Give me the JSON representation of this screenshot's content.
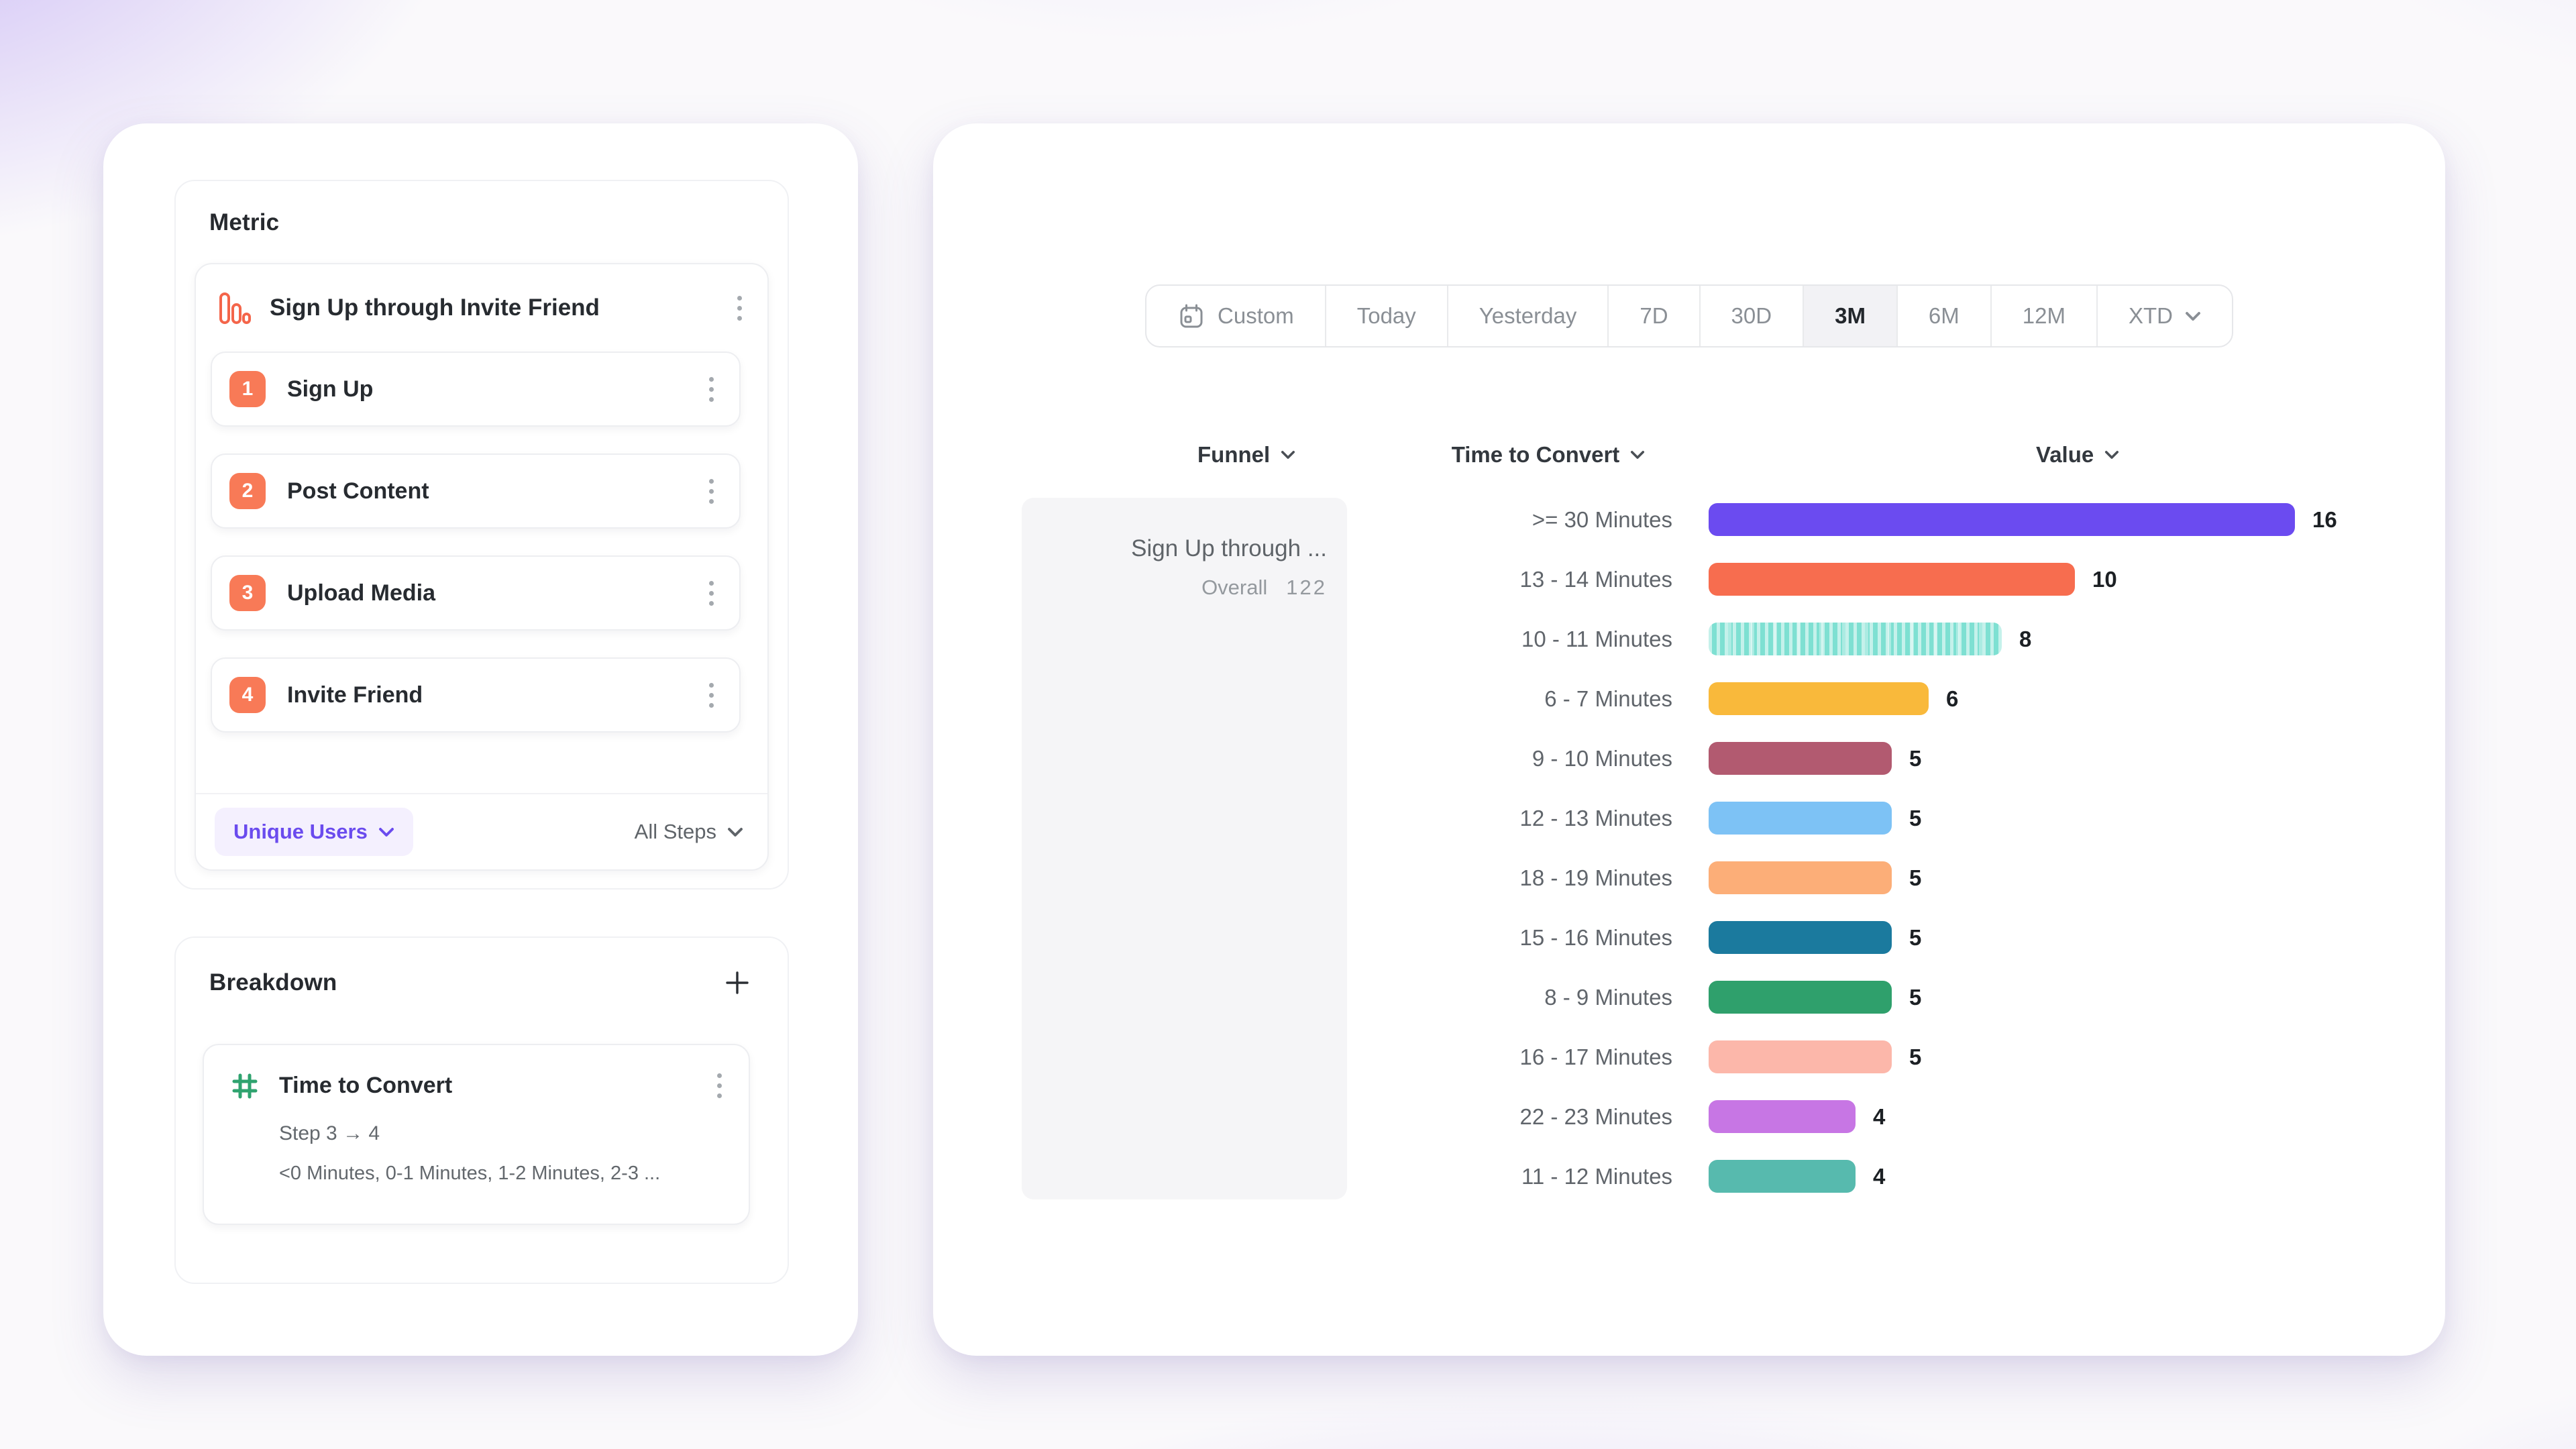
{
  "colors": {
    "accent_purple": "#6A4BEE",
    "step_badge_coral": "#F87A57",
    "funnel_icon_orange": "#F4654A",
    "hash_icon_green": "#2FA36F",
    "funnel_cell_bg": "#F5F5F7"
  },
  "left_panel": {
    "metric_section": {
      "heading": "Metric",
      "funnel": {
        "title": "Sign Up through Invite Friend",
        "steps": [
          {
            "number": "1",
            "label": "Sign Up"
          },
          {
            "number": "2",
            "label": "Post Content"
          },
          {
            "number": "3",
            "label": "Upload Media"
          },
          {
            "number": "4",
            "label": "Invite Friend"
          }
        ],
        "counting": "Unique Users",
        "step_filter": "All Steps"
      }
    },
    "breakdown_section": {
      "heading": "Breakdown",
      "property": {
        "name": "Time to Convert",
        "step_range": "Step 3 → 4",
        "buckets_preview": "<0 Minutes, 0-1 Minutes, 1-2 Minutes, 2-3 ..."
      }
    }
  },
  "toolbar": {
    "date_ranges": [
      {
        "label": "Custom",
        "icon": "calendar",
        "selected": false,
        "dropdown": false
      },
      {
        "label": "Today",
        "selected": false,
        "dropdown": false
      },
      {
        "label": "Yesterday",
        "selected": false,
        "dropdown": false
      },
      {
        "label": "7D",
        "selected": false,
        "dropdown": false
      },
      {
        "label": "30D",
        "selected": false,
        "dropdown": false
      },
      {
        "label": "3M",
        "selected": true,
        "dropdown": false
      },
      {
        "label": "6M",
        "selected": false,
        "dropdown": false
      },
      {
        "label": "12M",
        "selected": false,
        "dropdown": false
      },
      {
        "label": "XTD",
        "selected": false,
        "dropdown": true
      }
    ]
  },
  "results": {
    "columns": [
      {
        "label": "Funnel"
      },
      {
        "label": "Time to Convert"
      },
      {
        "label": "Value"
      }
    ],
    "funnel_cell": {
      "name": "Sign Up through ...",
      "overall_label": "Overall",
      "overall_value": "122"
    }
  },
  "chart_data": {
    "type": "bar",
    "orientation": "horizontal",
    "categories": [
      ">= 30 Minutes",
      "13 - 14 Minutes",
      "10 - 11 Minutes",
      "6 - 7 Minutes",
      "9 - 10 Minutes",
      "12 - 13 Minutes",
      "18 - 19 Minutes",
      "15 - 16 Minutes",
      "8 - 9 Minutes",
      "16 - 17 Minutes",
      "22 - 23 Minutes",
      "11 - 12 Minutes"
    ],
    "values": [
      16,
      10,
      8,
      6,
      5,
      5,
      5,
      5,
      5,
      5,
      4,
      4
    ],
    "colors": [
      "#6B4BF0",
      "#F76D4F",
      "#7EE0D2",
      "#F9B93B",
      "#B25A70",
      "#7DC2F5",
      "#FCAE78",
      "#1B7A9E",
      "#2FA06C",
      "#FCB7AA",
      "#C776E4",
      "#57BAAE"
    ],
    "patterns": [
      "solid",
      "solid",
      "hatched",
      "solid",
      "solid",
      "solid",
      "solid",
      "solid",
      "solid",
      "solid",
      "solid",
      "solid"
    ],
    "xlabel": "Value",
    "ylabel": "Time to Convert",
    "xlim": [
      0,
      16
    ],
    "value_labels_shown": true,
    "grid": false,
    "legend": "none"
  }
}
